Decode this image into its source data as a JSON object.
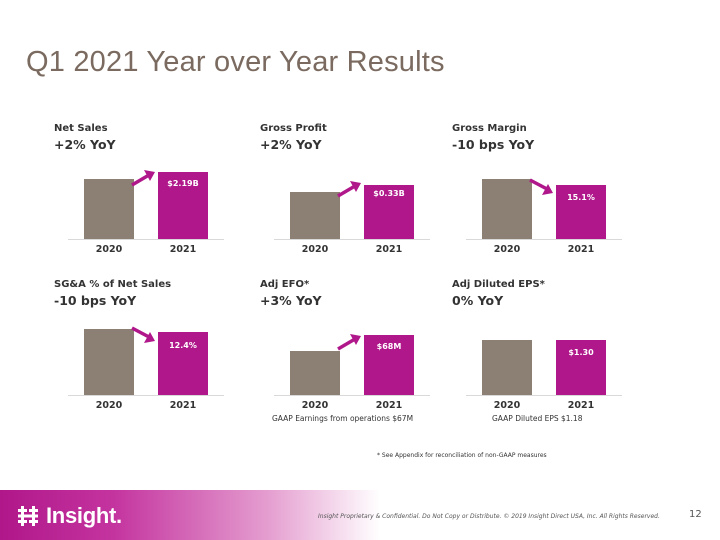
{
  "slide": {
    "title": "Q1 2021 Year over Year Results",
    "footnote": "* See Appendix for reconciliation of non-GAAP measures",
    "footer": {
      "logo_text": "Insight.",
      "confidential": "Insight Proprietary & Confidential. Do Not Copy or Distribute. © 2019 Insight Direct USA, Inc. All Rights Reserved.",
      "page_number": "12"
    }
  },
  "colors": {
    "prior_year_bar": "#8c7f74",
    "current_year_bar": "#b0178a",
    "title": "#7a6a5f",
    "brand_magenta": "#b0178a"
  },
  "icons": [
    "up-arrow-icon",
    "down-arrow-icon",
    "insight-logo-icon"
  ],
  "panels": [
    {
      "name": "Net Sales",
      "change": "+2% YoY",
      "value_label": "$2.19B",
      "direction": "up",
      "years": [
        "2020",
        "2021"
      ],
      "note": ""
    },
    {
      "name": "Gross Profit",
      "change": "+2% YoY",
      "value_label": "$0.33B",
      "direction": "up",
      "years": [
        "2020",
        "2021"
      ],
      "note": ""
    },
    {
      "name": "Gross Margin",
      "change": "-10 bps YoY",
      "value_label": "15.1%",
      "direction": "down",
      "years": [
        "2020",
        "2021"
      ],
      "note": ""
    },
    {
      "name": "SG&A % of Net Sales",
      "change": "-10 bps YoY",
      "value_label": "12.4%",
      "direction": "down",
      "years": [
        "2020",
        "2021"
      ],
      "note": ""
    },
    {
      "name": "Adj EFO*",
      "change": "+3% YoY",
      "value_label": "$68M",
      "direction": "up",
      "years": [
        "2020",
        "2021"
      ],
      "note": "GAAP Earnings from operations $67M"
    },
    {
      "name": "Adj Diluted EPS*",
      "change": "0% YoY",
      "value_label": "$1.30",
      "direction": "flat",
      "years": [
        "2020",
        "2021"
      ],
      "note": "GAAP Diluted EPS $1.18"
    }
  ]
}
